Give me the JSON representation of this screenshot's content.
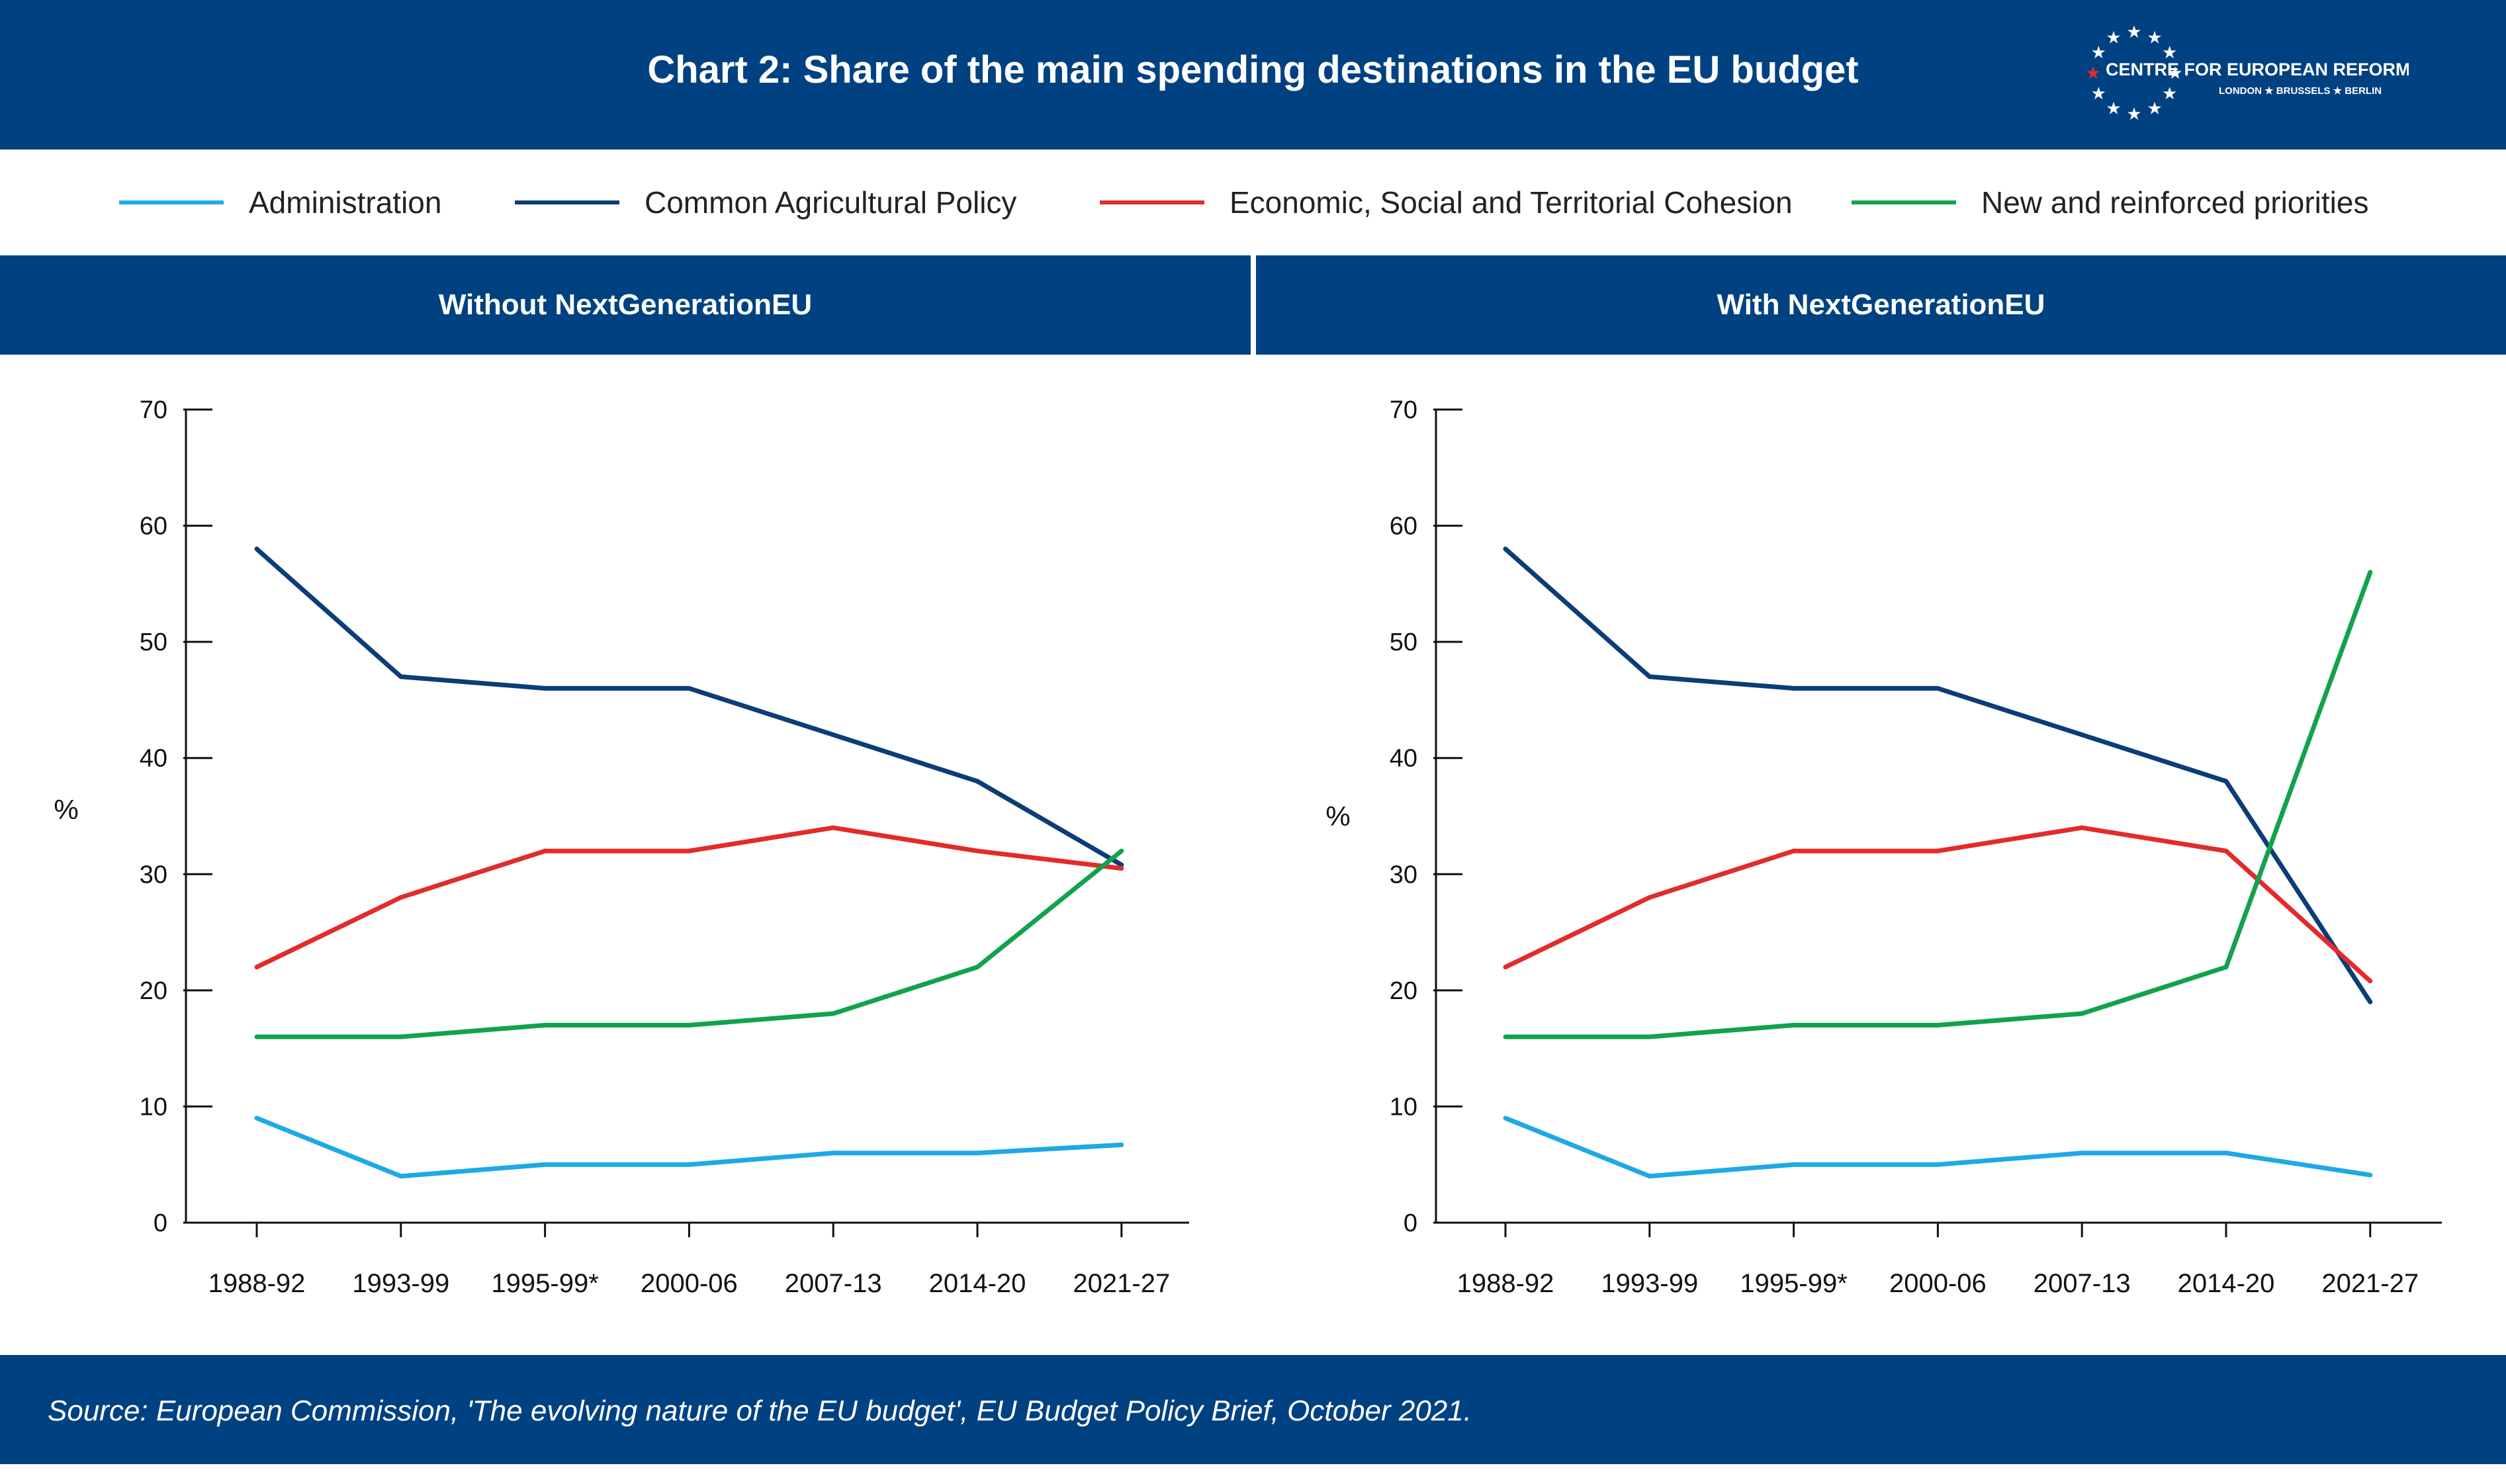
{
  "header": {
    "title": "Chart 2: Share of the main spending destinations in the EU budget",
    "logo": {
      "name": "CENTRE FOR EUROPEAN REFORM",
      "cities": "LONDON ★ BRUSSELS ★ BERLIN"
    }
  },
  "colors": {
    "brand": "#004181",
    "administration": "#1ea9e6",
    "cap": "#0b3d77",
    "cohesion": "#e32b2b",
    "priorities": "#13a24c",
    "accent_star": "#e32b2b"
  },
  "legend": [
    {
      "label": "Administration",
      "color": "#1ea9e6"
    },
    {
      "label": "Common Agricultural Policy",
      "color": "#0b3d77"
    },
    {
      "label": "Economic, Social and Territorial Cohesion",
      "color": "#e32b2b"
    },
    {
      "label": "New and reinforced priorities",
      "color": "#13a24c"
    }
  ],
  "chart_data": [
    {
      "type": "line",
      "title": "Without NextGenerationEU",
      "ylabel": "%",
      "ylim": [
        0,
        70
      ],
      "yticks": [
        0,
        10,
        20,
        30,
        40,
        50,
        60,
        70
      ],
      "categories": [
        "1988-92",
        "1993-99",
        "1995-99*",
        "2000-06",
        "2007-13",
        "2014-20",
        "2021-27"
      ],
      "series": [
        {
          "name": "Administration",
          "color": "#1ea9e6",
          "values": [
            9,
            4,
            5,
            5,
            6,
            6,
            6.7
          ]
        },
        {
          "name": "Common Agricultural Policy",
          "color": "#0b3d77",
          "values": [
            58,
            47,
            46,
            46,
            42,
            38,
            30.8
          ]
        },
        {
          "name": "Economic, Social and Territorial Cohesion",
          "color": "#e32b2b",
          "values": [
            22,
            28,
            32,
            32,
            34,
            32,
            30.5
          ]
        },
        {
          "name": "New and reinforced priorities",
          "color": "#13a24c",
          "values": [
            16,
            16,
            17,
            17,
            18,
            22,
            32
          ]
        }
      ]
    },
    {
      "type": "line",
      "title": "With NextGenerationEU",
      "ylabel": "%",
      "ylim": [
        0,
        70
      ],
      "yticks": [
        0,
        10,
        20,
        30,
        40,
        50,
        60,
        70
      ],
      "categories": [
        "1988-92",
        "1993-99",
        "1995-99*",
        "2000-06",
        "2007-13",
        "2014-20",
        "2021-27"
      ],
      "series": [
        {
          "name": "Administration",
          "color": "#1ea9e6",
          "values": [
            9,
            4,
            5,
            5,
            6,
            6,
            4.1
          ]
        },
        {
          "name": "Common Agricultural Policy",
          "color": "#0b3d77",
          "values": [
            58,
            47,
            46,
            46,
            42,
            38,
            19
          ]
        },
        {
          "name": "Economic, Social and Territorial Cohesion",
          "color": "#e32b2b",
          "values": [
            22,
            28,
            32,
            32,
            34,
            32,
            20.8
          ]
        },
        {
          "name": "New and reinforced priorities",
          "color": "#13a24c",
          "values": [
            16,
            16,
            17,
            17,
            18,
            22,
            56
          ]
        }
      ]
    }
  ],
  "footer": {
    "source": "Source: European Commission, 'The evolving nature of the EU budget', EU Budget Policy Brief, October 2021."
  }
}
